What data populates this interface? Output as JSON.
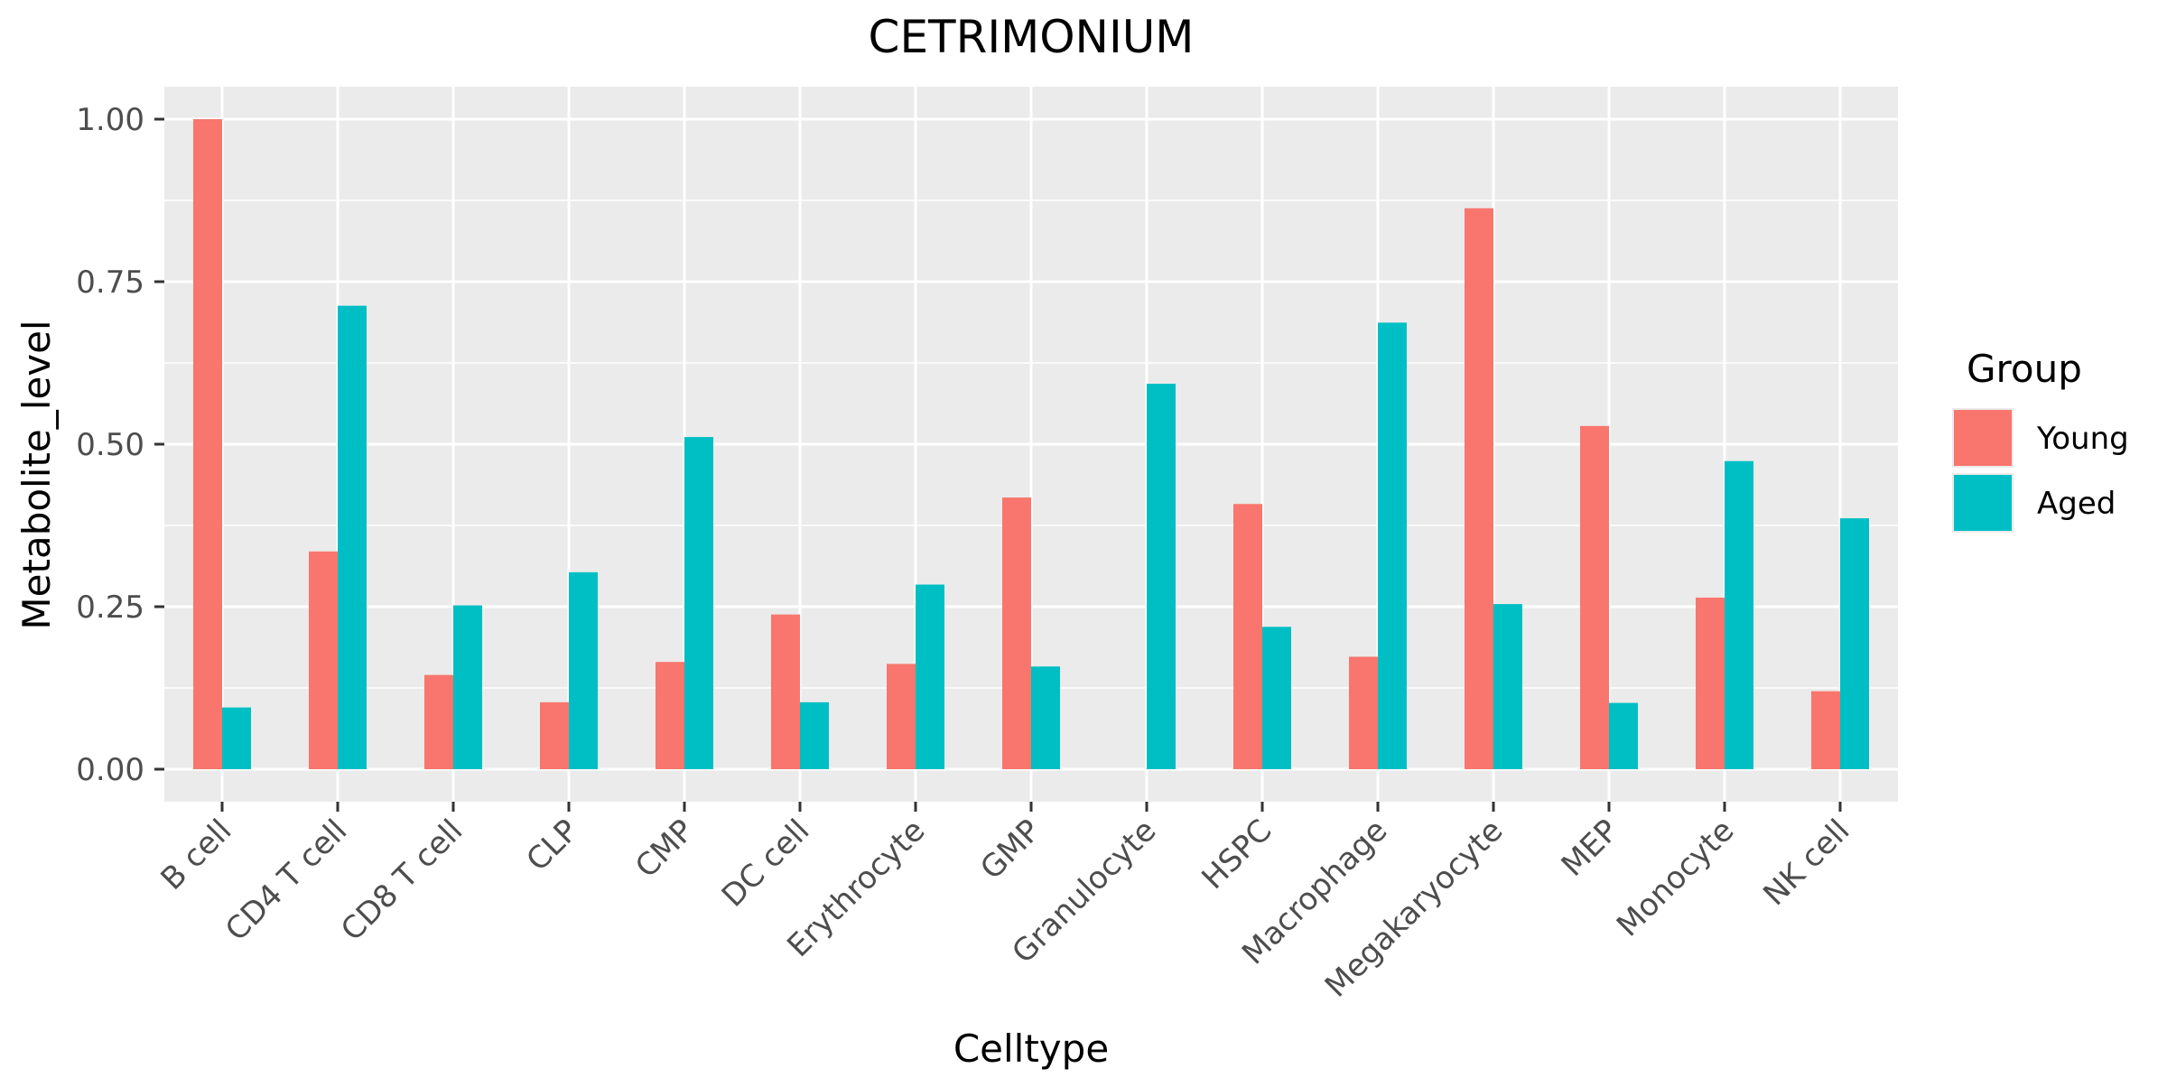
{
  "chart_data": {
    "type": "bar",
    "title": "CETRIMONIUM",
    "xlabel": "Celltype",
    "ylabel": "Metabolite_level",
    "ylim": [
      -0.05,
      1.05
    ],
    "yticks": [
      0.0,
      0.25,
      0.5,
      0.75,
      1.0
    ],
    "ytick_labels": [
      "0.00",
      "0.25",
      "0.50",
      "0.75",
      "1.00"
    ],
    "grid": true,
    "legend": {
      "title": "Group",
      "position": "right"
    },
    "categories": [
      "B cell",
      "CD4 T cell",
      "CD8 T cell",
      "CLP",
      "CMP",
      "DC cell",
      "Erythrocyte",
      "GMP",
      "Granulocyte",
      "HSPC",
      "Macrophage",
      "Megakaryocyte",
      "MEP",
      "Monocyte",
      "NK cell"
    ],
    "series": [
      {
        "name": "Young",
        "color": "#F8766D",
        "values": [
          1.0,
          0.335,
          0.145,
          0.103,
          0.165,
          0.238,
          0.162,
          0.418,
          0.0,
          0.408,
          0.173,
          0.863,
          0.528,
          0.264,
          0.12
        ]
      },
      {
        "name": "Aged",
        "color": "#00BFC4",
        "values": [
          0.095,
          0.713,
          0.252,
          0.303,
          0.511,
          0.103,
          0.284,
          0.158,
          0.593,
          0.219,
          0.687,
          0.254,
          0.102,
          0.474,
          0.386
        ]
      }
    ]
  },
  "colors": {
    "panel_background": "#EBEBEB",
    "grid_major": "#FFFFFF",
    "axis_text": "#4D4D4D",
    "tick_marks": "#333333",
    "title_text": "#000000"
  }
}
